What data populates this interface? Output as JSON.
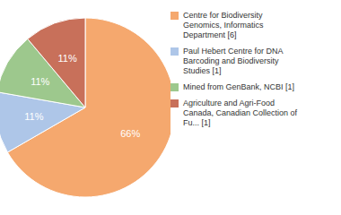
{
  "chart_data": {
    "type": "pie",
    "categories": [
      "Centre for Biodiversity\nGenomics, Informatics\nDepartment [6]",
      "Paul Hebert Centre for DNA\nBarcoding and Biodiversity\nStudies [1]",
      "Mined from GenBank, NCBI [1]",
      "Agriculture and Agri-Food\nCanada, Canadian Collection of\nFu... [1]"
    ],
    "values": [
      66,
      11,
      11,
      11
    ],
    "value_labels": [
      "66%",
      "11%",
      "11%",
      "11%"
    ],
    "colors": [
      "#F5A86E",
      "#AEC6E8",
      "#9DC88D",
      "#C8705A"
    ],
    "data_labels": true,
    "legend": "right"
  }
}
